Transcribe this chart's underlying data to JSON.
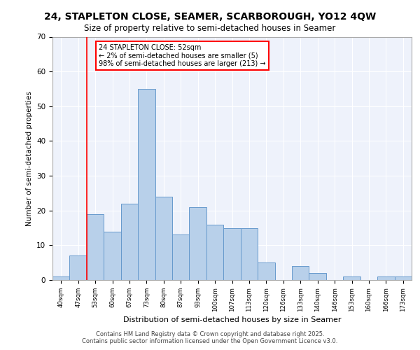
{
  "title_line1": "24, STAPLETON CLOSE, SEAMER, SCARBOROUGH, YO12 4QW",
  "title_line2": "Size of property relative to semi-detached houses in Seamer",
  "xlabel": "Distribution of semi-detached houses by size in Seamer",
  "ylabel": "Number of semi-detached properties",
  "categories": [
    "40sqm",
    "47sqm",
    "53sqm",
    "60sqm",
    "67sqm",
    "73sqm",
    "80sqm",
    "87sqm",
    "93sqm",
    "100sqm",
    "107sqm",
    "113sqm",
    "120sqm",
    "126sqm",
    "133sqm",
    "140sqm",
    "146sqm",
    "153sqm",
    "160sqm",
    "166sqm",
    "173sqm"
  ],
  "values": [
    1,
    7,
    19,
    14,
    22,
    55,
    24,
    13,
    21,
    16,
    15,
    15,
    5,
    0,
    4,
    2,
    0,
    1,
    0,
    1,
    1
  ],
  "bar_color": "#b8d0ea",
  "bar_edge_color": "#6699cc",
  "redline_index": 2,
  "annotation_title": "24 STAPLETON CLOSE: 52sqm",
  "annotation_line1": "← 2% of semi-detached houses are smaller (5)",
  "annotation_line2": "98% of semi-detached houses are larger (213) →",
  "ylim": [
    0,
    70
  ],
  "yticks": [
    0,
    10,
    20,
    30,
    40,
    50,
    60,
    70
  ],
  "background_color": "#eef2fb",
  "grid_color": "#ffffff",
  "footer_line1": "Contains HM Land Registry data © Crown copyright and database right 2025.",
  "footer_line2": "Contains public sector information licensed under the Open Government Licence v3.0."
}
